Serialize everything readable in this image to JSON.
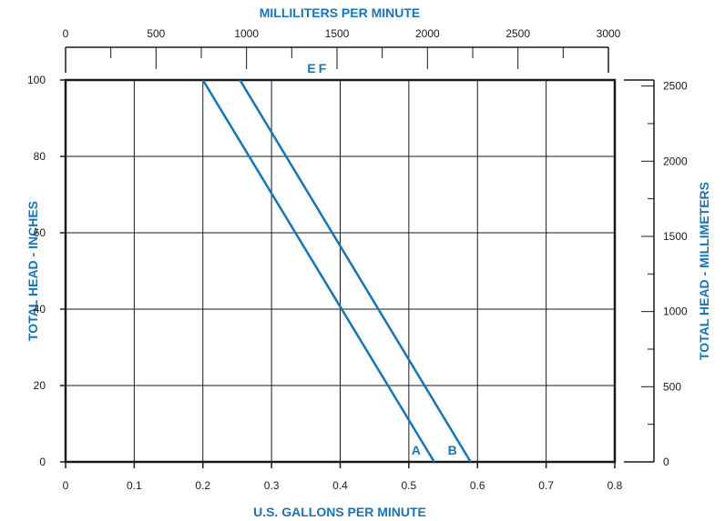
{
  "chart_data": {
    "type": "line",
    "title_top": "MILLILITERS PER MINUTE",
    "xlabel": "U.S. GALLONS PER MINUTE",
    "ylabel_left": "TOTAL HEAD - INCHES",
    "ylabel_right": "TOTAL HEAD - MILLIMETERS",
    "xlim": [
      0,
      0.8
    ],
    "ylim": [
      0,
      100
    ],
    "x_ticks": [
      "0",
      "0.1",
      "0.2",
      "0.3",
      "0.4",
      "0.5",
      "0.6",
      "0.7",
      "0.8"
    ],
    "y_ticks": [
      "0",
      "20",
      "40",
      "60",
      "80",
      "100"
    ],
    "top_ticks": [
      "0",
      "500",
      "1000",
      "1500",
      "2000",
      "2500",
      "3000"
    ],
    "top_lim": [
      0,
      3000
    ],
    "right_ticks": [
      "0",
      "500",
      "1000",
      "1500",
      "2000",
      "2500"
    ],
    "right_lim": [
      0,
      2540
    ],
    "grid": true,
    "line_color": "#1874b7",
    "series": [
      {
        "name": "A",
        "top_label": "E",
        "x": [
          0.2,
          0.537
        ],
        "y": [
          100,
          0
        ]
      },
      {
        "name": "B",
        "top_label": "F",
        "x": [
          0.254,
          0.59
        ],
        "y": [
          100,
          0
        ]
      }
    ]
  }
}
